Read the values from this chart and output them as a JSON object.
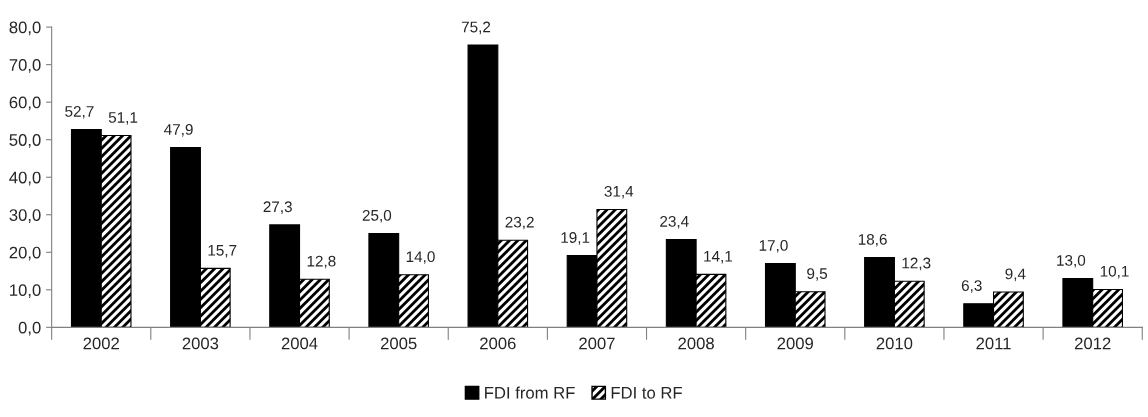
{
  "chart_data": {
    "type": "bar",
    "categories": [
      "2002",
      "2003",
      "2004",
      "2005",
      "2006",
      "2007",
      "2008",
      "2009",
      "2010",
      "2011",
      "2012"
    ],
    "series": [
      {
        "name": "FDI from RF",
        "color": "#000000",
        "values": [
          52.7,
          47.9,
          27.3,
          25.0,
          75.2,
          19.1,
          23.4,
          17.0,
          18.6,
          6.3,
          13.0
        ],
        "value_labels": [
          "52,7",
          "47,9",
          "27,3",
          "25,0",
          "75,2",
          "19,1",
          "23,4",
          "17,0",
          "18,6",
          "6,3",
          "13,0"
        ]
      },
      {
        "name": "FDI to RF",
        "color": "#000000",
        "values": [
          51.1,
          15.7,
          12.8,
          14.0,
          23.2,
          31.4,
          14.1,
          9.5,
          12.3,
          9.4,
          10.1
        ],
        "value_labels": [
          "51,1",
          "15,7",
          "12,8",
          "14,0",
          "23,2",
          "31,4",
          "14,1",
          "9,5",
          "12,3",
          "9,4",
          "10,1"
        ]
      }
    ],
    "ylim": [
      0,
      80
    ],
    "yticks": [
      {
        "value": 0,
        "label": "0,0"
      },
      {
        "value": 10,
        "label": "10,0"
      },
      {
        "value": 20,
        "label": "20,0"
      },
      {
        "value": 30,
        "label": "30,0"
      },
      {
        "value": 40,
        "label": "40,0"
      },
      {
        "value": 50,
        "label": "50,0"
      },
      {
        "value": 60,
        "label": "60,0"
      },
      {
        "value": 70,
        "label": "70,0"
      },
      {
        "value": 80,
        "label": "80,0"
      }
    ],
    "grid": false,
    "legend": "bottom"
  }
}
